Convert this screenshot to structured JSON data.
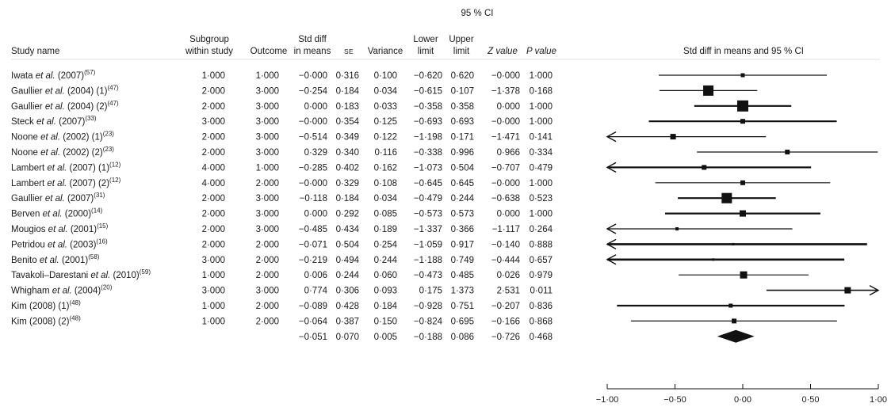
{
  "chart_data": {
    "type": "forest",
    "ci_header": "95 % CI",
    "columns": {
      "study_name": "Study name",
      "subgroup": [
        "Subgroup",
        "within study"
      ],
      "outcome": "Outcome",
      "std_diff": [
        "Std diff",
        "in means"
      ],
      "se": "SE",
      "variance": "Variance",
      "lower": [
        "Lower",
        "limit"
      ],
      "upper": [
        "Upper",
        "limit"
      ],
      "z_value": "Z value",
      "p_value": "P value",
      "plot_title": "Std diff in means and 95 % CI"
    },
    "studies": [
      {
        "author": "Iwata",
        "etal": true,
        "year": "(2007)",
        "sup": "(57)",
        "subgroup": "1·000",
        "outcome": "1·000",
        "std_diff": "−0·000",
        "se": "0·316",
        "variance": "0·100",
        "lower": "−0·620",
        "upper": "0·620",
        "z": "−0·000",
        "p": "1·000",
        "est": 0.0,
        "lo": -0.62,
        "hi": 0.62,
        "box": 5,
        "stroke": 1.2,
        "arrow_left": false,
        "arrow_right": false
      },
      {
        "author": "Gaullier",
        "etal": true,
        "year": "(2004) (1)",
        "sup": "(47)",
        "subgroup": "2·000",
        "outcome": "3·000",
        "std_diff": "−0·254",
        "se": "0·184",
        "variance": "0·034",
        "lower": "−0·615",
        "upper": "0·107",
        "z": "−1·378",
        "p": "0·168",
        "est": -0.254,
        "lo": -0.615,
        "hi": 0.107,
        "box": 13,
        "stroke": 1.2,
        "arrow_left": false,
        "arrow_right": false
      },
      {
        "author": "Gaullier",
        "etal": true,
        "year": "(2004) (2)",
        "sup": "(47)",
        "subgroup": "2·000",
        "outcome": "3·000",
        "std_diff": "0·000",
        "se": "0·183",
        "variance": "0·033",
        "lower": "−0·358",
        "upper": "0·358",
        "z": "0·000",
        "p": "1·000",
        "est": 0.0,
        "lo": -0.358,
        "hi": 0.358,
        "box": 14,
        "stroke": 2.2,
        "arrow_left": false,
        "arrow_right": false
      },
      {
        "author": "Steck",
        "etal": true,
        "year": "(2007)",
        "sup": "(33)",
        "subgroup": "3·000",
        "outcome": "3·000",
        "std_diff": "−0·000",
        "se": "0·354",
        "variance": "0·125",
        "lower": "−0·693",
        "upper": "0·693",
        "z": "−0·000",
        "p": "1·000",
        "est": 0.0,
        "lo": -0.693,
        "hi": 0.693,
        "box": 6,
        "stroke": 2.2,
        "arrow_left": false,
        "arrow_right": false
      },
      {
        "author": "Noone",
        "etal": true,
        "year": "(2002) (1)",
        "sup": "(23)",
        "subgroup": "2·000",
        "outcome": "3·000",
        "std_diff": "−0·514",
        "se": "0·349",
        "variance": "0·122",
        "lower": "−1·198",
        "upper": "0·171",
        "z": "−1·471",
        "p": "0·141",
        "est": -0.514,
        "lo": -1.198,
        "hi": 0.171,
        "box": 7,
        "stroke": 1.2,
        "arrow_left": true,
        "arrow_right": false
      },
      {
        "author": "Noone",
        "etal": true,
        "year": "(2002) (2)",
        "sup": "(23)",
        "subgroup": "2·000",
        "outcome": "3·000",
        "std_diff": "0·329",
        "se": "0·340",
        "variance": "0·116",
        "lower": "−0·338",
        "upper": "0·996",
        "z": "0·966",
        "p": "0·334",
        "est": 0.329,
        "lo": -0.338,
        "hi": 0.996,
        "box": 6,
        "stroke": 1.2,
        "arrow_left": false,
        "arrow_right": false
      },
      {
        "author": "Lambert",
        "etal": true,
        "year": "(2007) (1)",
        "sup": "(12)",
        "subgroup": "4·000",
        "outcome": "1·000",
        "std_diff": "−0·285",
        "se": "0·402",
        "variance": "0·162",
        "lower": "−1·073",
        "upper": "0·504",
        "z": "−0·707",
        "p": "0·479",
        "est": -0.285,
        "lo": -1.073,
        "hi": 0.504,
        "box": 6,
        "stroke": 2.2,
        "arrow_left": true,
        "arrow_right": false
      },
      {
        "author": "Lambert",
        "etal": true,
        "year": "(2007) (2)",
        "sup": "(12)",
        "subgroup": "4·000",
        "outcome": "2·000",
        "std_diff": "−0·000",
        "se": "0·329",
        "variance": "0·108",
        "lower": "−0·645",
        "upper": "0·645",
        "z": "−0·000",
        "p": "1·000",
        "est": 0.0,
        "lo": -0.645,
        "hi": 0.645,
        "box": 6,
        "stroke": 1.2,
        "arrow_left": false,
        "arrow_right": false
      },
      {
        "author": "Gaullier",
        "etal": true,
        "year": "(2007)",
        "sup": "(31)",
        "subgroup": "2·000",
        "outcome": "3·000",
        "std_diff": "−0·118",
        "se": "0·184",
        "variance": "0·034",
        "lower": "−0·479",
        "upper": "0·244",
        "z": "−0·638",
        "p": "0·523",
        "est": -0.118,
        "lo": -0.479,
        "hi": 0.244,
        "box": 13,
        "stroke": 2.2,
        "arrow_left": false,
        "arrow_right": false
      },
      {
        "author": "Berven",
        "etal": true,
        "year": "(2000)",
        "sup": "(14)",
        "subgroup": "2·000",
        "outcome": "3·000",
        "std_diff": "0·000",
        "se": "0·292",
        "variance": "0·085",
        "lower": "−0·573",
        "upper": "0·573",
        "z": "0·000",
        "p": "1·000",
        "est": 0.0,
        "lo": -0.573,
        "hi": 0.573,
        "box": 8,
        "stroke": 2.2,
        "arrow_left": false,
        "arrow_right": false
      },
      {
        "author": "Mougios",
        "etal": true,
        "year": "(2001)",
        "sup": "(15)",
        "subgroup": "2·000",
        "outcome": "3·000",
        "std_diff": "−0·485",
        "se": "0·434",
        "variance": "0·189",
        "lower": "−1·337",
        "upper": "0·366",
        "z": "−1·117",
        "p": "0·264",
        "est": -0.485,
        "lo": -1.337,
        "hi": 0.366,
        "box": 4,
        "stroke": 1.2,
        "arrow_left": true,
        "arrow_right": false
      },
      {
        "author": "Petridou",
        "etal": true,
        "year": "(2003)",
        "sup": "(16)",
        "subgroup": "2·000",
        "outcome": "2·000",
        "std_diff": "−0·071",
        "se": "0·504",
        "variance": "0·254",
        "lower": "−1·059",
        "upper": "0·917",
        "z": "−0·140",
        "p": "0·888",
        "est": -0.071,
        "lo": -1.059,
        "hi": 0.917,
        "box": 3,
        "stroke": 2.6,
        "arrow_left": true,
        "arrow_right": false
      },
      {
        "author": "Benito",
        "etal": true,
        "year": "(2001)",
        "sup": "(58)",
        "subgroup": "3·000",
        "outcome": "2·000",
        "std_diff": "−0·219",
        "se": "0·494",
        "variance": "0·244",
        "lower": "−1·188",
        "upper": "0·749",
        "z": "−0·444",
        "p": "0·657",
        "est": -0.219,
        "lo": -1.188,
        "hi": 0.749,
        "box": 3,
        "stroke": 2.6,
        "arrow_left": true,
        "arrow_right": false
      },
      {
        "author": "Tavakoli–Darestani",
        "etal": true,
        "year": "(2010)",
        "sup": "(59)",
        "subgroup": "1·000",
        "outcome": "2·000",
        "std_diff": "0·006",
        "se": "0·244",
        "variance": "0·060",
        "lower": "−0·473",
        "upper": "0·485",
        "z": "0·026",
        "p": "0·979",
        "est": 0.006,
        "lo": -0.473,
        "hi": 0.485,
        "box": 9,
        "stroke": 1.2,
        "arrow_left": false,
        "arrow_right": false
      },
      {
        "author": "Whigham",
        "etal": true,
        "year": "(2004)",
        "sup": "(20)",
        "subgroup": "3·000",
        "outcome": "3·000",
        "std_diff": "0·774",
        "se": "0·306",
        "variance": "0·093",
        "lower": "0·175",
        "upper": "1·373",
        "z": "2·531",
        "p": "0·011",
        "est": 0.774,
        "lo": 0.175,
        "hi": 1.373,
        "box": 8,
        "stroke": 1.6,
        "arrow_left": false,
        "arrow_right": true
      },
      {
        "author": "Kim",
        "etal": false,
        "year": "(2008) (1)",
        "sup": "(48)",
        "subgroup": "1·000",
        "outcome": "2·000",
        "std_diff": "−0·089",
        "se": "0·428",
        "variance": "0·184",
        "lower": "−0·928",
        "upper": "0·751",
        "z": "−0·207",
        "p": "0·836",
        "est": -0.089,
        "lo": -0.928,
        "hi": 0.751,
        "box": 5,
        "stroke": 2.2,
        "arrow_left": false,
        "arrow_right": false
      },
      {
        "author": "Kim",
        "etal": false,
        "year": "(2008) (2)",
        "sup": "(48)",
        "subgroup": "1·000",
        "outcome": "2·000",
        "std_diff": "−0·064",
        "se": "0·387",
        "variance": "0·150",
        "lower": "−0·824",
        "upper": "0·695",
        "z": "−0·166",
        "p": "0·868",
        "est": -0.064,
        "lo": -0.824,
        "hi": 0.695,
        "box": 6,
        "stroke": 1.2,
        "arrow_left": false,
        "arrow_right": false
      }
    ],
    "overall": {
      "std_diff": "−0·051",
      "se": "0·070",
      "variance": "0·005",
      "lower": "−0·188",
      "upper": "0·086",
      "z": "−0·726",
      "p": "0·468",
      "est": -0.051,
      "lo": -0.188,
      "hi": 0.086
    },
    "axis": {
      "min": -1.0,
      "max": 1.0,
      "ticks": [
        -1.0,
        -0.5,
        0.0,
        0.5,
        1.0
      ],
      "tick_labels": [
        "−1·00",
        "−0·50",
        "0·00",
        "0·50",
        "1·00"
      ]
    }
  }
}
